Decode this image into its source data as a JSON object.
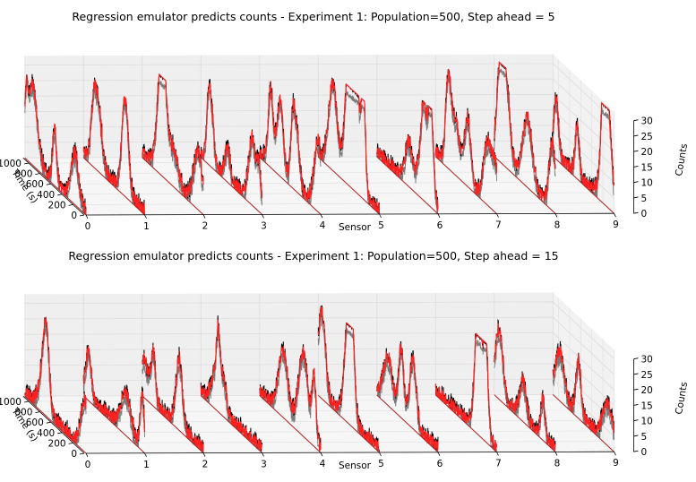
{
  "chart_data": [
    {
      "type": "line",
      "title": "Regression emulator predicts counts - Experiment 1: Population=500, Step ahead = 5",
      "xlabel": "Sensor",
      "ylabel": "Time (s)",
      "zlabel": "Counts",
      "sensors": [
        "0",
        "1",
        "2",
        "3",
        "4",
        "5",
        "6",
        "7",
        "8",
        "9"
      ],
      "time_ticks": [
        "0",
        "200",
        "400",
        "600",
        "800",
        "1000"
      ],
      "count_ticks": [
        "0",
        "5",
        "10",
        "15",
        "20",
        "25",
        "30"
      ],
      "time_range": [
        0,
        1100
      ],
      "count_range": [
        0,
        30
      ],
      "series": [
        {
          "name": "",
          "color": "#000000"
        },
        {
          "name": "",
          "color": "#ff2020"
        }
      ],
      "peaks": [
        30,
        24,
        24,
        21,
        26,
        28,
        23,
        25,
        25,
        21
      ],
      "step_ahead": 5
    },
    {
      "type": "line",
      "title": "Regression emulator predicts counts - Experiment 1: Population=500, Step ahead = 15",
      "xlabel": "Sensor",
      "ylabel": "Time (s)",
      "zlabel": "Counts",
      "sensors": [
        "0",
        "1",
        "2",
        "3",
        "4",
        "5",
        "6",
        "7",
        "8",
        "9"
      ],
      "time_ticks": [
        "0",
        "200",
        "400",
        "600",
        "800",
        "1000"
      ],
      "count_ticks": [
        "0",
        "5",
        "10",
        "15",
        "20",
        "25",
        "30"
      ],
      "time_range": [
        0,
        1100
      ],
      "count_range": [
        0,
        30
      ],
      "series": [
        {
          "name": "",
          "color": "#000000"
        },
        {
          "name": "",
          "color": "#ff2020"
        }
      ],
      "peaks": [
        30,
        24,
        24,
        21,
        26,
        28,
        23,
        25,
        25,
        21
      ],
      "step_ahead": 15
    }
  ]
}
